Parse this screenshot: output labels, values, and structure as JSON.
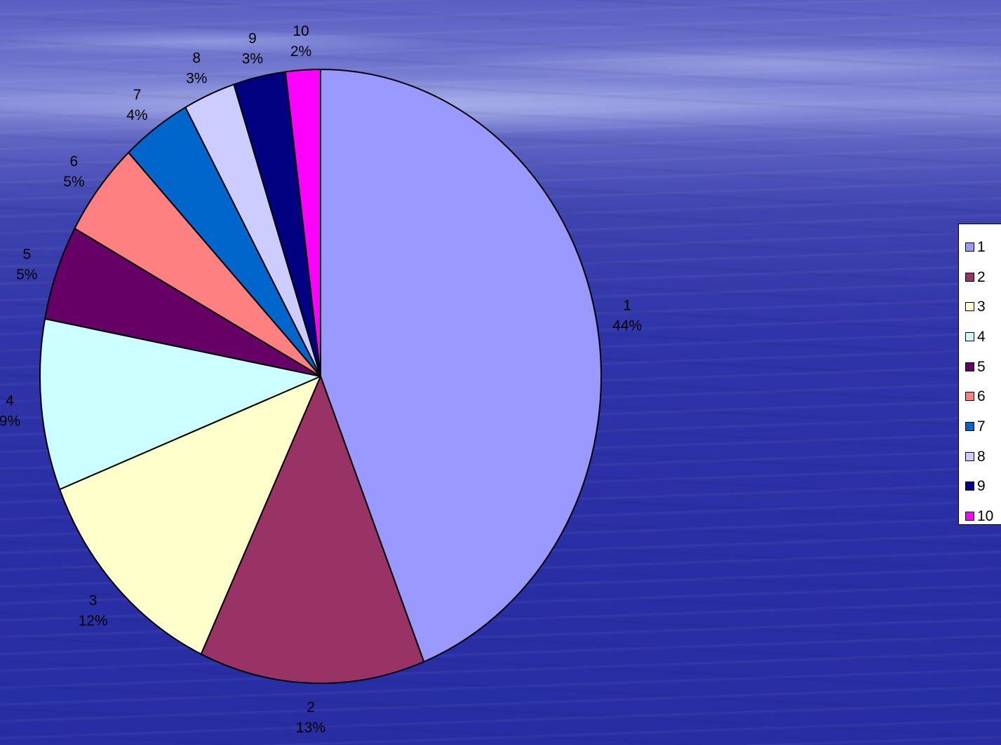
{
  "chart_data": {
    "type": "pie",
    "categories": [
      "1",
      "2",
      "3",
      "4",
      "5",
      "6",
      "7",
      "8",
      "9",
      "10"
    ],
    "values": [
      44,
      13,
      12,
      9,
      5,
      5,
      4,
      3,
      3,
      2
    ],
    "percent_labels": [
      "44%",
      "13%",
      "12%",
      "9%",
      "5%",
      "5%",
      "4%",
      "3%",
      "3%",
      "2%"
    ],
    "colors": [
      "#9999FF",
      "#993366",
      "#FFFFCC",
      "#CCFFFF",
      "#660066",
      "#FF8080",
      "#0066CC",
      "#CCCCFF",
      "#000080",
      "#FF00FF"
    ],
    "legend_placement": "right",
    "start_angle": "12 o'clock",
    "direction": "clockwise"
  }
}
